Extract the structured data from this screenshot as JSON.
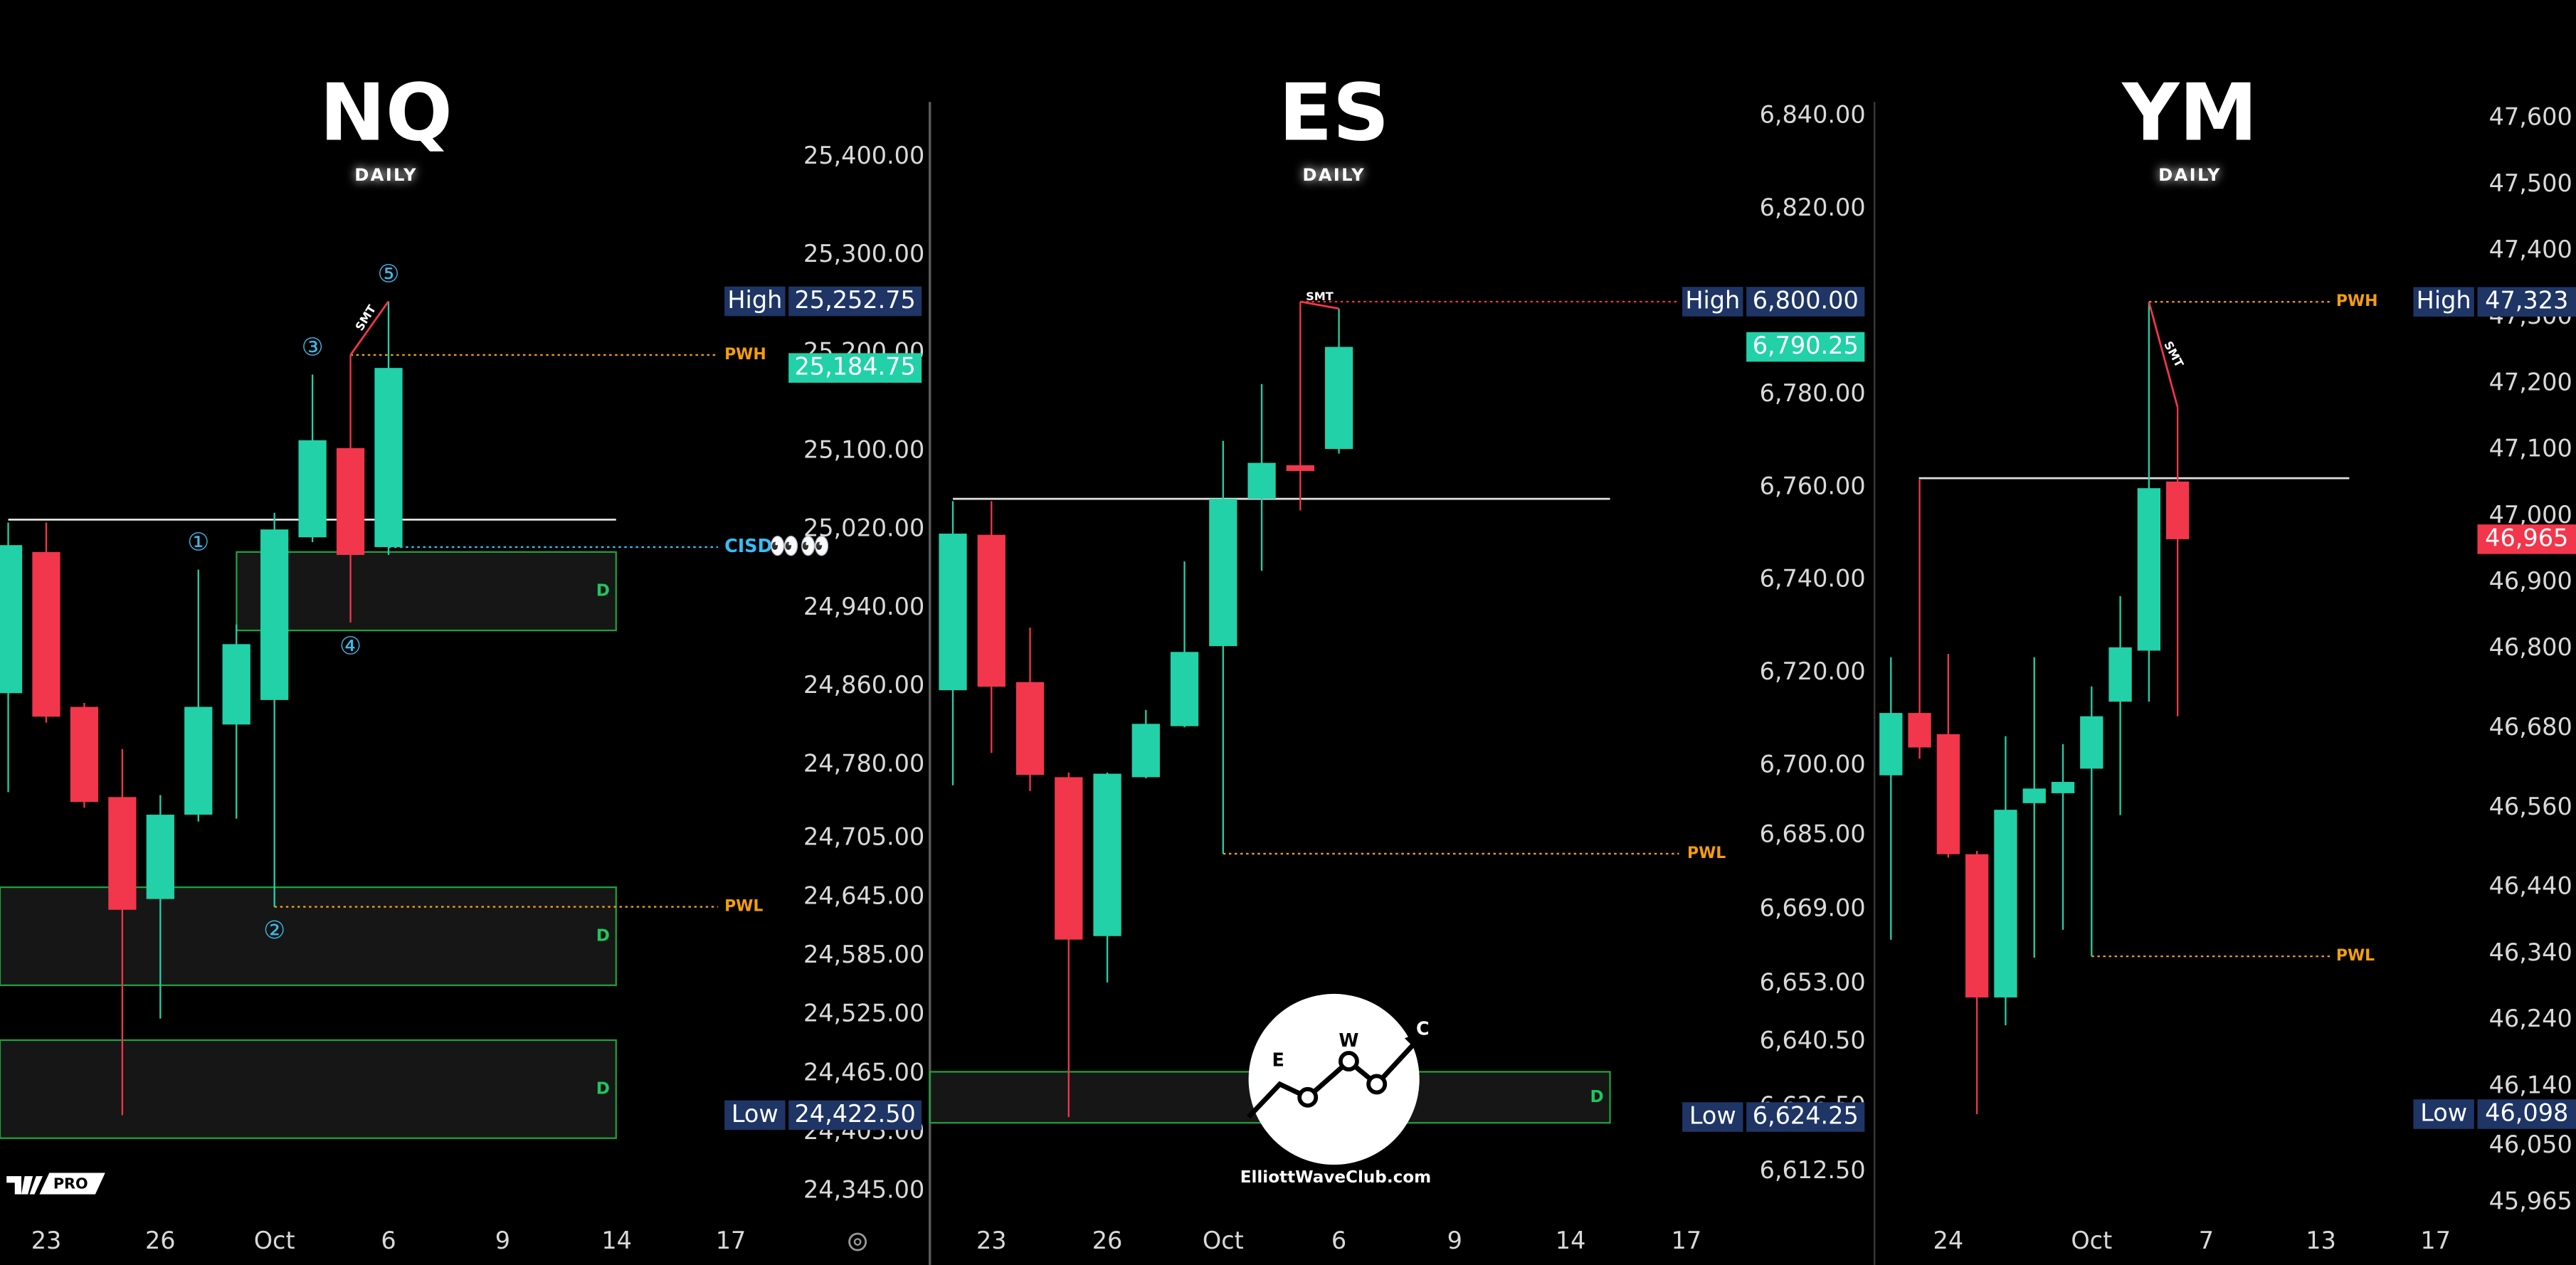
{
  "chart_data": [
    {
      "type": "candlestick",
      "title": "NQ",
      "subtitle": "DAILY",
      "categories": [
        null,
        "23",
        null,
        null,
        "26",
        null,
        null,
        "Oct",
        null,
        null,
        "6",
        null,
        null,
        "9",
        null,
        null,
        "14",
        null,
        null,
        "17"
      ],
      "open": [
        24853,
        24997,
        24839,
        24747,
        24643,
        24729,
        24821,
        24846,
        25012,
        25103,
        25002,
        null,
        null,
        null,
        null,
        null,
        null,
        null,
        null,
        null
      ],
      "high": [
        25027,
        25027,
        24843,
        24796,
        24749,
        24979,
        24923,
        25037,
        25178,
        25198,
        25252.75,
        null,
        null,
        null,
        null,
        null,
        null,
        null,
        null,
        null
      ],
      "low": [
        24752,
        24823,
        24736,
        24422.5,
        24521,
        24722,
        24725,
        24635,
        25007,
        24925,
        24994,
        null,
        null,
        null,
        null,
        null,
        null,
        null,
        null,
        null
      ],
      "close": [
        25004,
        24829,
        24742,
        24632,
        24729,
        24839,
        24903,
        25020,
        25111,
        24994,
        25184.75,
        null,
        null,
        null,
        null,
        null,
        null,
        null,
        null,
        null
      ],
      "up_color": "#22d1a8",
      "down_color": "#f2364b",
      "ylim": [
        24320,
        25560
      ],
      "yticks": [
        {
          "value": 25400,
          "label": "25,400.00"
        },
        {
          "value": 25300,
          "label": "25,300.00"
        },
        {
          "value": 25200,
          "label": "25,200.00"
        },
        {
          "value": 25100,
          "label": "25,100.00"
        },
        {
          "value": 25020,
          "label": "25,020.00"
        },
        {
          "value": 24940,
          "label": "24,940.00"
        },
        {
          "value": 24860,
          "label": "24,860.00"
        },
        {
          "value": 24780,
          "label": "24,780.00"
        },
        {
          "value": 24705,
          "label": "24,705.00"
        },
        {
          "value": 24645,
          "label": "24,645.00"
        },
        {
          "value": 24585,
          "label": "24,585.00"
        },
        {
          "value": 24525,
          "label": "24,525.00"
        },
        {
          "value": 24465,
          "label": "24,465.00"
        },
        {
          "value": 24405,
          "label": "24,405.00"
        },
        {
          "value": 24345,
          "label": "24,345.00"
        }
      ],
      "high_label": {
        "label": "High",
        "value": 25252.75,
        "value_label": "25,252.75"
      },
      "low_label": {
        "label": "Low",
        "value": 24422.5,
        "value_label": "24,422.50"
      },
      "last_label": {
        "value": 25184.75,
        "value_label": "25,184.75"
      },
      "level": 25030,
      "annotations": [
        {
          "text": "PWH",
          "value": 25198,
          "color": "#f59e0b"
        },
        {
          "text": "PWL",
          "value": 24635,
          "color": "#f59e0b"
        },
        {
          "text": "CISD",
          "value": 25002,
          "color": "#38bdf8",
          "emoji": "👀👀"
        }
      ],
      "zones": [
        {
          "label": "D",
          "top": 24997,
          "bottom": 24917
        },
        {
          "label": "D",
          "top": 24655,
          "bottom": 24555
        },
        {
          "label": "D",
          "top": 24499,
          "bottom": 24399
        }
      ],
      "wave_labels": [
        "①",
        "②",
        "③",
        "④",
        "⑤"
      ],
      "smt": "SMT"
    },
    {
      "type": "candlestick",
      "title": "ES",
      "subtitle": "DAILY",
      "categories": [
        null,
        "23",
        null,
        null,
        "26",
        null,
        null,
        "Oct",
        null,
        null,
        "6",
        null,
        null,
        "9",
        null,
        null,
        "14",
        null,
        null,
        "17"
      ],
      "open": [
        6716.25,
        6749.75,
        6718,
        6697.5,
        6663.25,
        6697.5,
        6708.5,
        6725.75,
        6757.5,
        6764.75,
        6768.25,
        null,
        null,
        null,
        null,
        null,
        null,
        null,
        null,
        null
      ],
      "high": [
        6757,
        6757,
        6729.75,
        6698.5,
        6698.5,
        6712,
        6744,
        6770,
        6782.25,
        6800,
        6798.5,
        null,
        null,
        null,
        null,
        null,
        null,
        null,
        null,
        null
      ],
      "low": [
        6695.75,
        6702.75,
        6694.5,
        6624.25,
        6653.25,
        6697.25,
        6708.25,
        6681,
        6742,
        6755,
        6767.25,
        null,
        null,
        null,
        null,
        null,
        null,
        null,
        null,
        null
      ],
      "close": [
        6750,
        6717,
        6698,
        6662.5,
        6698.25,
        6709,
        6724.5,
        6757.5,
        6765.25,
        6763.5,
        6790.25,
        null,
        null,
        null,
        null,
        null,
        null,
        null,
        null,
        null
      ],
      "up_color": "#22d1a8",
      "down_color": "#f2364b",
      "ylim": [
        6603,
        6865
      ],
      "yticks": [
        {
          "value": 6840,
          "label": "6,840.00"
        },
        {
          "value": 6820,
          "label": "6,820.00"
        },
        {
          "value": 6800,
          "label": "6,800.00"
        },
        {
          "value": 6780,
          "label": "6,780.00"
        },
        {
          "value": 6760,
          "label": "6,760.00"
        },
        {
          "value": 6740,
          "label": "6,740.00"
        },
        {
          "value": 6720,
          "label": "6,720.00"
        },
        {
          "value": 6700,
          "label": "6,700.00"
        },
        {
          "value": 6685,
          "label": "6,685.00"
        },
        {
          "value": 6669,
          "label": "6,669.00"
        },
        {
          "value": 6653,
          "label": "6,653.00"
        },
        {
          "value": 6640.5,
          "label": "6,640.50"
        },
        {
          "value": 6626.5,
          "label": "6,626.50"
        },
        {
          "value": 6612.5,
          "label": "6,612.50"
        }
      ],
      "high_label": {
        "label": "High",
        "value": 6800,
        "value_label": "6,800.00"
      },
      "low_label": {
        "label": "Low",
        "value": 6624.25,
        "value_label": "6,624.25"
      },
      "last_label": {
        "value": 6790.25,
        "value_label": "6,790.25"
      },
      "level": 6757.5,
      "annotations": [
        {
          "text": "PWL",
          "value": 6681,
          "color": "#f59e0b"
        }
      ],
      "zones": [
        {
          "label": "D",
          "top": 6634,
          "bottom": 6623
        }
      ],
      "smt": "SMT"
    },
    {
      "type": "candlestick",
      "title": "YM",
      "subtitle": "DAILY",
      "categories": [
        null,
        null,
        "24",
        null,
        null,
        null,
        null,
        "Oct",
        null,
        null,
        null,
        "7",
        null,
        null,
        null,
        "13",
        null,
        null,
        null,
        "17"
      ],
      "open": [
        46609,
        46703,
        46671,
        46490,
        46274,
        46567,
        46582,
        46619,
        46720,
        46797,
        47052,
        null,
        null,
        null,
        null,
        null,
        null,
        null,
        null,
        null
      ],
      "high": [
        46787,
        47055,
        46792,
        46495,
        46668,
        46787,
        46656,
        46743,
        46879,
        47323,
        47164,
        null,
        null,
        null,
        null,
        null,
        null,
        null,
        null,
        null
      ],
      "low": [
        46361,
        46634,
        46485,
        46098,
        46232,
        46334,
        46376,
        46336,
        46549,
        46720,
        46698,
        null,
        null,
        null,
        null,
        null,
        null,
        null,
        null,
        null
      ],
      "close": [
        46703,
        46651,
        46490,
        46274,
        46557,
        46589,
        46599,
        46698,
        46802,
        47042,
        46965,
        null,
        null,
        null,
        null,
        null,
        null,
        null,
        null,
        null
      ],
      "up_color": "#22d1a8",
      "down_color": "#f2364b",
      "ylim": [
        45945,
        47778
      ],
      "yticks": [
        {
          "value": 47600,
          "label": "47,600"
        },
        {
          "value": 47500,
          "label": "47,500"
        },
        {
          "value": 47400,
          "label": "47,400"
        },
        {
          "value": 47300,
          "label": "47,300"
        },
        {
          "value": 47200,
          "label": "47,200"
        },
        {
          "value": 47100,
          "label": "47,100"
        },
        {
          "value": 47000,
          "label": "47,000"
        },
        {
          "value": 46900,
          "label": "46,900"
        },
        {
          "value": 46800,
          "label": "46,800"
        },
        {
          "value": 46680,
          "label": "46,680"
        },
        {
          "value": 46560,
          "label": "46,560"
        },
        {
          "value": 46440,
          "label": "46,440"
        },
        {
          "value": 46340,
          "label": "46,340"
        },
        {
          "value": 46240,
          "label": "46,240"
        },
        {
          "value": 46140,
          "label": "46,140"
        },
        {
          "value": 46050,
          "label": "46,050"
        },
        {
          "value": 45965,
          "label": "45,965"
        }
      ],
      "high_label": {
        "label": "High",
        "value": 47323,
        "value_label": "47,323"
      },
      "low_label": {
        "label": "Low",
        "value": 46098,
        "value_label": "46,098"
      },
      "last_label": {
        "value": 46965,
        "value_label": "46,965"
      },
      "level": 47057,
      "annotations": [
        {
          "text": "PWH",
          "value": 47323,
          "color": "#f59e0b"
        },
        {
          "text": "PWL",
          "value": 46336,
          "color": "#f59e0b"
        }
      ],
      "zones": [],
      "smt": "SMT"
    }
  ],
  "logo": {
    "badge": "PRO"
  },
  "watermark": {
    "letters": [
      "E",
      "W",
      "C"
    ],
    "site": "ElliottWaveClub.com"
  }
}
